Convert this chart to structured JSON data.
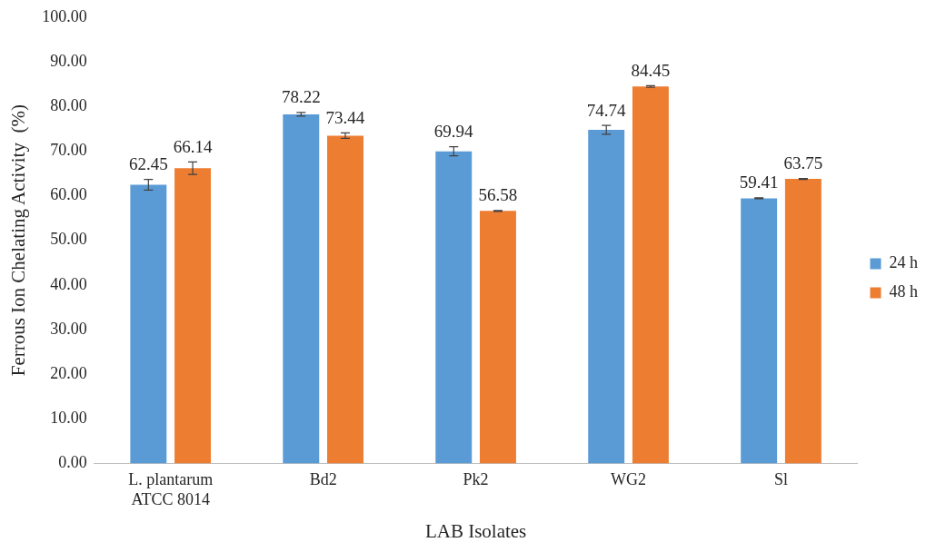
{
  "chart_data": {
    "type": "bar",
    "xlabel": "LAB Isolates",
    "ylabel": "Ferrous Ion Chelating Activity  (%)",
    "categories": [
      "L. plantarum\nATCC 8014",
      "Bd2",
      "Pk2",
      "WG2",
      "Sl"
    ],
    "series": [
      {
        "name": "24 h",
        "color": "#5b9bd5",
        "values": [
          62.45,
          78.22,
          69.94,
          74.74,
          59.41
        ],
        "errors": [
          1.2,
          0.4,
          1.0,
          1.0,
          0.1
        ]
      },
      {
        "name": "48 h",
        "color": "#ed7d31",
        "values": [
          66.14,
          73.44,
          56.58,
          84.45,
          63.75
        ],
        "errors": [
          1.4,
          0.6,
          0.1,
          0.2,
          0.1
        ]
      }
    ],
    "ylim": [
      0,
      100
    ],
    "yticks": [
      {
        "value": 0,
        "label": "0.00"
      },
      {
        "value": 10,
        "label": "10.00"
      },
      {
        "value": 20,
        "label": "20.00"
      },
      {
        "value": 30,
        "label": "30.00"
      },
      {
        "value": 40,
        "label": "40.00"
      },
      {
        "value": 50,
        "label": "50.00"
      },
      {
        "value": 60,
        "label": "60.00"
      },
      {
        "value": 70,
        "label": "70.00"
      },
      {
        "value": 80,
        "label": "80.00"
      },
      {
        "value": 90,
        "label": "90.00"
      },
      {
        "value": 100,
        "label": "100.00"
      }
    ],
    "data_labels": true,
    "grid": false,
    "legend": "right"
  }
}
